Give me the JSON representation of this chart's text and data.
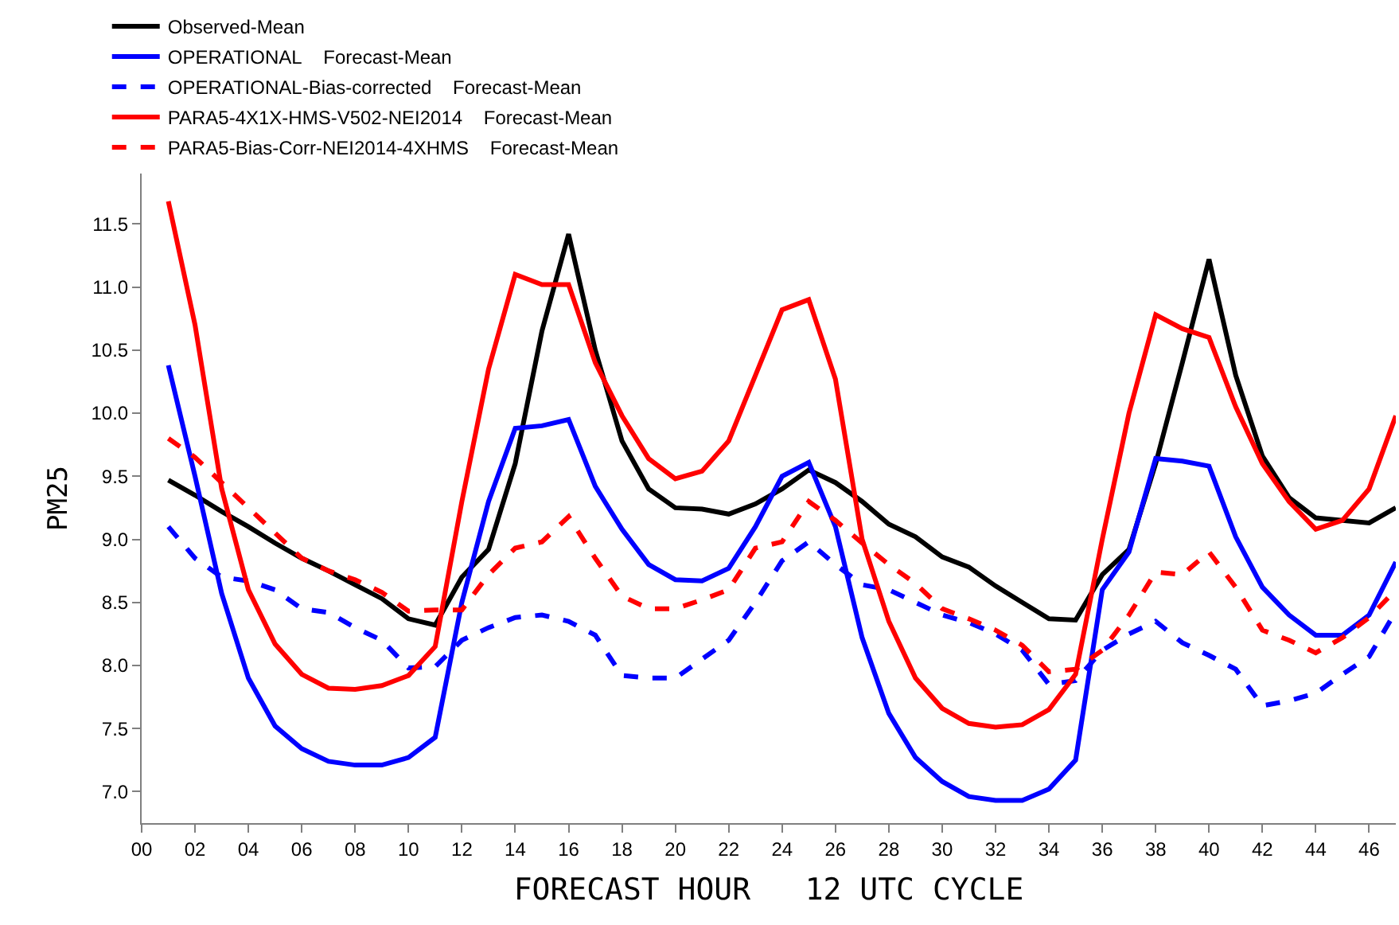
{
  "chart_data": {
    "type": "line",
    "xlabel": "FORECAST HOUR   12 UTC CYCLE",
    "ylabel": "PM25",
    "x": [
      1,
      2,
      3,
      4,
      5,
      6,
      7,
      8,
      9,
      10,
      11,
      12,
      13,
      14,
      15,
      16,
      17,
      18,
      19,
      20,
      21,
      22,
      23,
      24,
      25,
      26,
      27,
      28,
      29,
      30,
      31,
      32,
      33,
      34,
      35,
      36,
      37,
      38,
      39,
      40,
      41,
      42,
      43,
      44,
      45,
      46,
      47
    ],
    "xlim": [
      0,
      47
    ],
    "ylim": [
      6.75,
      11.9
    ],
    "xticks": [
      {
        "value": 0,
        "label": "00"
      },
      {
        "value": 2,
        "label": "02"
      },
      {
        "value": 4,
        "label": "04"
      },
      {
        "value": 6,
        "label": "06"
      },
      {
        "value": 8,
        "label": "08"
      },
      {
        "value": 10,
        "label": "10"
      },
      {
        "value": 12,
        "label": "12"
      },
      {
        "value": 14,
        "label": "14"
      },
      {
        "value": 16,
        "label": "16"
      },
      {
        "value": 18,
        "label": "18"
      },
      {
        "value": 20,
        "label": "20"
      },
      {
        "value": 22,
        "label": "22"
      },
      {
        "value": 24,
        "label": "24"
      },
      {
        "value": 26,
        "label": "26"
      },
      {
        "value": 28,
        "label": "28"
      },
      {
        "value": 30,
        "label": "30"
      },
      {
        "value": 32,
        "label": "32"
      },
      {
        "value": 34,
        "label": "34"
      },
      {
        "value": 36,
        "label": "36"
      },
      {
        "value": 38,
        "label": "38"
      },
      {
        "value": 40,
        "label": "40"
      },
      {
        "value": 42,
        "label": "42"
      },
      {
        "value": 44,
        "label": "44"
      },
      {
        "value": 46,
        "label": "46"
      }
    ],
    "yticks": [
      {
        "value": 7,
        "label": "7.0"
      },
      {
        "value": 7.5,
        "label": "7.5"
      },
      {
        "value": 8,
        "label": "8.0"
      },
      {
        "value": 8.5,
        "label": "8.5"
      },
      {
        "value": 9,
        "label": "9.0"
      },
      {
        "value": 9.5,
        "label": "9.5"
      },
      {
        "value": 10,
        "label": "10.0"
      },
      {
        "value": 10.5,
        "label": "10.5"
      },
      {
        "value": 11,
        "label": "11.0"
      },
      {
        "value": 11.5,
        "label": "11.5"
      }
    ],
    "grid": false,
    "legend": "top left",
    "marker": "none",
    "series": [
      {
        "name": "Observed-Mean",
        "color": "#000000",
        "line_style": "solid",
        "values": [
          9.47,
          9.35,
          9.22,
          9.1,
          8.97,
          8.85,
          8.75,
          8.64,
          8.53,
          8.37,
          8.32,
          8.7,
          8.92,
          9.6,
          10.65,
          11.42,
          10.5,
          9.78,
          9.4,
          9.25,
          9.24,
          9.2,
          9.28,
          9.4,
          9.55,
          9.45,
          9.3,
          9.12,
          9.02,
          8.86,
          8.78,
          8.63,
          8.5,
          8.37,
          8.36,
          8.72,
          8.92,
          9.6,
          10.4,
          11.22,
          10.3,
          9.66,
          9.33,
          9.17,
          9.15,
          9.13,
          9.25
        ]
      },
      {
        "name": "OPERATIONAL    Forecast-Mean",
        "color": "#0000ff",
        "line_style": "solid",
        "values": [
          10.38,
          9.5,
          8.57,
          7.9,
          7.52,
          7.34,
          7.24,
          7.21,
          7.21,
          7.27,
          7.43,
          8.5,
          9.3,
          9.88,
          9.9,
          9.95,
          9.42,
          9.08,
          8.8,
          8.68,
          8.67,
          8.77,
          9.1,
          9.5,
          9.61,
          9.1,
          8.22,
          7.62,
          7.27,
          7.08,
          6.96,
          6.93,
          6.93,
          7.02,
          7.25,
          8.6,
          8.9,
          9.64,
          9.62,
          9.58,
          9.02,
          8.62,
          8.4,
          8.24,
          8.24,
          8.4,
          8.82
        ]
      },
      {
        "name": "OPERATIONAL-Bias-corrected    Forecast-Mean",
        "color": "#0000ff",
        "line_style": "dashed",
        "values": [
          9.1,
          8.85,
          8.7,
          8.67,
          8.6,
          8.45,
          8.42,
          8.3,
          8.2,
          7.98,
          7.99,
          8.2,
          8.3,
          8.38,
          8.4,
          8.35,
          8.24,
          7.92,
          7.9,
          7.9,
          8.05,
          8.2,
          8.5,
          8.83,
          8.98,
          8.8,
          8.64,
          8.6,
          8.5,
          8.4,
          8.34,
          8.25,
          8.12,
          7.85,
          7.88,
          8.12,
          8.25,
          8.35,
          8.18,
          8.08,
          7.97,
          7.68,
          7.72,
          7.78,
          7.93,
          8.07,
          8.43
        ]
      },
      {
        "name": "PARA5-4X1X-HMS-V502-NEI2014    Forecast-Mean",
        "color": "#ff0000",
        "line_style": "solid",
        "values": [
          11.68,
          10.7,
          9.4,
          8.6,
          8.17,
          7.93,
          7.82,
          7.81,
          7.84,
          7.92,
          8.15,
          9.3,
          10.35,
          11.1,
          11.02,
          11.02,
          10.4,
          9.98,
          9.64,
          9.48,
          9.54,
          9.78,
          10.3,
          10.82,
          10.9,
          10.27,
          9.0,
          8.35,
          7.9,
          7.66,
          7.54,
          7.51,
          7.53,
          7.65,
          7.93,
          9.0,
          10.0,
          10.78,
          10.67,
          10.6,
          10.05,
          9.6,
          9.3,
          9.08,
          9.15,
          9.4,
          9.98
        ]
      },
      {
        "name": "PARA5-Bias-Corr-NEI2014-4XHMS    Forecast-Mean",
        "color": "#ff0000",
        "line_style": "dashed",
        "values": [
          9.8,
          9.65,
          9.45,
          9.25,
          9.05,
          8.85,
          8.75,
          8.68,
          8.58,
          8.43,
          8.44,
          8.44,
          8.72,
          8.93,
          8.98,
          9.18,
          8.85,
          8.55,
          8.45,
          8.45,
          8.52,
          8.6,
          8.93,
          8.98,
          9.3,
          9.15,
          8.97,
          8.8,
          8.65,
          8.45,
          8.37,
          8.28,
          8.16,
          7.95,
          7.97,
          8.12,
          8.4,
          8.74,
          8.72,
          8.9,
          8.62,
          8.28,
          8.2,
          8.1,
          8.22,
          8.38,
          8.6
        ]
      }
    ]
  }
}
